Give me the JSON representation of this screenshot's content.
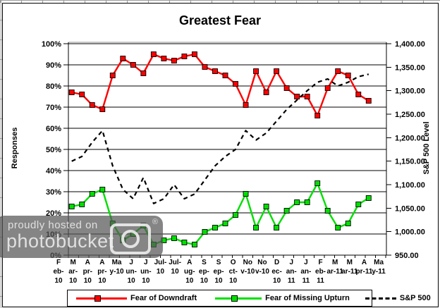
{
  "title": "Greatest Fear",
  "axes": {
    "left": {
      "title": "Responses",
      "tick_labels": [
        "0%",
        "10%",
        "20%",
        "30%",
        "40%",
        "50%",
        "60%",
        "70%",
        "80%",
        "90%",
        "100%"
      ]
    },
    "right": {
      "title": "S&P 500 Level",
      "tick_labels": [
        "950.00",
        "1,000.00",
        "1,050.00",
        "1,100.00",
        "1,150.00",
        "1,200.00",
        "1,250.00",
        "1,300.00",
        "1,350.00",
        "1,400.00"
      ]
    }
  },
  "x_axis": {
    "labels": [
      "Feb-10",
      "Mar-10",
      "Apr-10",
      "Apr-10",
      "May-10",
      "Jun-10",
      "Jun-10",
      "Jul-10",
      "Jul-10",
      "Aug-10",
      "Sep-10",
      "Sep-10",
      "Oct-10",
      "Nov-10",
      "Nov-10",
      "Dec-10",
      "Jan-11",
      "Jan-11",
      "Feb-11",
      "Mar-11",
      "Mar-11",
      "Apr-11",
      "May-11"
    ],
    "label_lines": [
      [
        "F",
        "eb-",
        "10"
      ],
      [
        "M",
        "ar-",
        "10"
      ],
      [
        "A",
        "pr-",
        "10"
      ],
      [
        "A",
        "pr-",
        "10"
      ],
      [
        "Ma",
        "y-10"
      ],
      [
        "J",
        "un-",
        "10"
      ],
      [
        "J",
        "un-",
        "10"
      ],
      [
        "Jul-",
        "10"
      ],
      [
        "Jul-",
        "10"
      ],
      [
        "A",
        "ug-",
        "10"
      ],
      [
        "S",
        "ep-",
        "10"
      ],
      [
        "S",
        "ep-",
        "10"
      ],
      [
        "O",
        "ct-",
        "10"
      ],
      [
        "No",
        "v-10"
      ],
      [
        "No",
        "v-10"
      ],
      [
        "D",
        "ec-",
        "10"
      ],
      [
        "J",
        "an-",
        "11"
      ],
      [
        "J",
        "an-",
        "11"
      ],
      [
        "F",
        "eb-",
        "11"
      ],
      [
        "M",
        "ar-11"
      ],
      [
        "M",
        "ar-11"
      ],
      [
        "A",
        "pr-11"
      ],
      [
        "Ma",
        "y-11"
      ]
    ]
  },
  "legend": {
    "items": [
      {
        "label": "Fear of Downdraft",
        "color": "#ff0000",
        "line_style": "solid",
        "marker": "square"
      },
      {
        "label": "Fear of Missing Upturn",
        "color": "#00df00",
        "line_style": "solid",
        "marker": "square"
      },
      {
        "label": "S&P 500",
        "color": "#000000",
        "line_style": "dashed",
        "marker": "none"
      }
    ]
  },
  "watermark": {
    "line1": "proudly hosted on",
    "line2": "photobucket",
    "registered_mark": "®"
  },
  "chart_data": {
    "type": "line",
    "x_labels_displayed": [
      "Feb-10",
      "Mar-10",
      "Apr-10",
      "Apr-10",
      "May-10",
      "Jun-10",
      "Jun-10",
      "Jul-10",
      "Jul-10",
      "Aug-10",
      "Sep-10",
      "Sep-10",
      "Oct-10",
      "Nov-10",
      "Nov-10",
      "Dec-10",
      "Jan-11",
      "Jan-11",
      "Feb-11",
      "Mar-11",
      "Mar-11",
      "Apr-11",
      "May-11"
    ],
    "series": [
      {
        "name": "Fear of Downdraft",
        "axis": "left",
        "color": "#ff0000",
        "marker": "square",
        "dashed": false,
        "values": [
          77,
          76,
          71,
          69,
          85,
          93,
          90,
          86,
          95,
          93,
          92,
          94,
          95,
          89,
          87,
          85,
          81,
          71,
          87,
          77,
          87,
          79,
          75,
          75,
          66,
          79,
          87,
          85,
          76,
          73
        ]
      },
      {
        "name": "Fear of Missing Upturn",
        "axis": "left",
        "color": "#00df00",
        "marker": "square",
        "dashed": false,
        "values": [
          23,
          24,
          29,
          31,
          15,
          7,
          10,
          14,
          5,
          7,
          8,
          6,
          5,
          11,
          13,
          15,
          19,
          29,
          13,
          23,
          13,
          21,
          25,
          25,
          34,
          21,
          13,
          15,
          24,
          27
        ]
      },
      {
        "name": "S&P 500",
        "axis": "right",
        "color": "#000000",
        "marker": "none",
        "dashed": true,
        "values": [
          1150,
          1160,
          1190,
          1215,
          1140,
          1090,
          1070,
          1115,
          1060,
          1070,
          1100,
          1070,
          1080,
          1110,
          1140,
          1160,
          1175,
          1215,
          1195,
          1210,
          1235,
          1260,
          1280,
          1300,
          1318,
          1325,
          1310,
          1318,
          1330,
          1335
        ]
      }
    ],
    "left_ylim": [
      0,
      100
    ],
    "right_ylim": [
      950,
      1400
    ],
    "left_tick_step": 10,
    "right_tick_step": 50,
    "grid": true,
    "legend_position": "bottom",
    "title": "Greatest Fear",
    "left_ylabel": "Responses",
    "right_ylabel": "S&P 500 Level"
  }
}
